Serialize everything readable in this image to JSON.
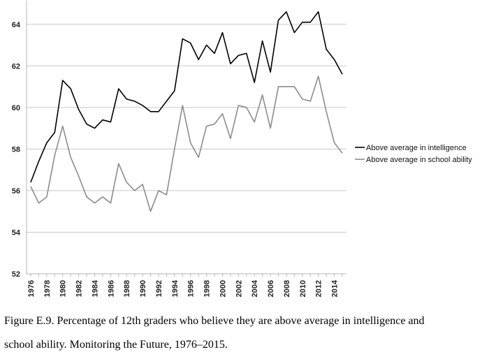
{
  "chart_data": {
    "type": "line",
    "title": "",
    "xlabel": "",
    "ylabel": "",
    "x": [
      1976,
      1977,
      1978,
      1979,
      1980,
      1981,
      1982,
      1983,
      1984,
      1985,
      1986,
      1987,
      1988,
      1989,
      1990,
      1991,
      1992,
      1993,
      1994,
      1995,
      1996,
      1997,
      1998,
      1999,
      2000,
      2001,
      2002,
      2003,
      2004,
      2005,
      2006,
      2007,
      2008,
      2009,
      2010,
      2011,
      2012,
      2013,
      2014,
      2015
    ],
    "xtick_labels": [
      "1976",
      "1978",
      "1980",
      "1982",
      "1984",
      "1986",
      "1988",
      "1990",
      "1992",
      "1994",
      "1996",
      "1998",
      "2000",
      "2002",
      "2004",
      "2006",
      "2008",
      "2010",
      "2012",
      "2014"
    ],
    "ylim": [
      52,
      65
    ],
    "yticks": [
      52,
      54,
      56,
      58,
      60,
      62,
      64
    ],
    "grid": "horizontal",
    "legend_position": "right",
    "series": [
      {
        "name": "Above average in intelligence",
        "color": "#000000",
        "values": [
          56.4,
          57.4,
          58.3,
          58.8,
          61.3,
          60.9,
          59.9,
          59.2,
          59.0,
          59.4,
          59.3,
          60.9,
          60.4,
          60.3,
          60.1,
          59.8,
          59.8,
          60.3,
          60.8,
          63.3,
          63.1,
          62.3,
          63.0,
          62.6,
          63.6,
          62.1,
          62.5,
          62.6,
          61.2,
          63.2,
          61.7,
          64.2,
          64.6,
          63.6,
          64.1,
          64.1,
          64.6,
          62.8,
          62.3,
          61.6
        ]
      },
      {
        "name": "Above average in school ability",
        "color": "#8c8c8c",
        "values": [
          56.2,
          55.4,
          55.7,
          57.7,
          59.1,
          57.6,
          56.7,
          55.7,
          55.4,
          55.7,
          55.4,
          57.3,
          56.4,
          56.0,
          56.3,
          55.0,
          56.0,
          55.8,
          58.0,
          60.1,
          58.3,
          57.6,
          59.1,
          59.2,
          59.7,
          58.5,
          60.1,
          60.0,
          59.3,
          60.6,
          59.0,
          61.0,
          61.0,
          61.0,
          60.4,
          60.3,
          61.5,
          59.8,
          58.3,
          57.8
        ]
      }
    ]
  },
  "caption": {
    "line1": "Figure E.9. Percentage of 12th graders who believe they are above average in intelligence and",
    "line2": "school ability. Monitoring the Future, 1976–2015."
  }
}
